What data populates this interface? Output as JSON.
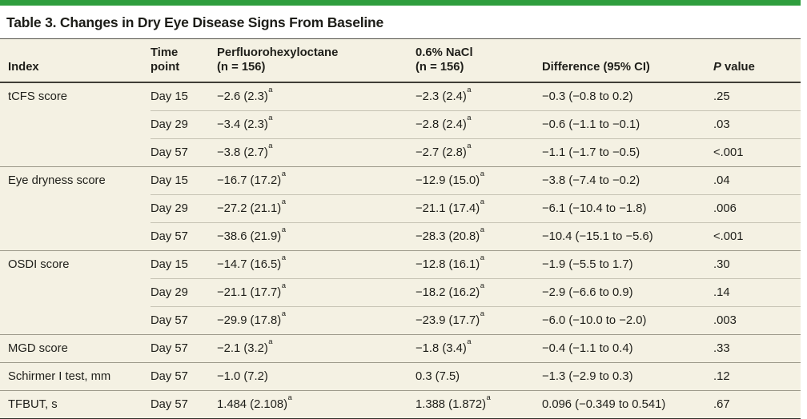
{
  "title": "Table 3. Changes in Dry Eye Disease Signs From Baseline",
  "colors": {
    "accent_green": "#2f9e3e",
    "table_background": "#f4f1e3",
    "text": "#1f1f1a"
  },
  "table": {
    "header": {
      "index": "Index",
      "time_point": "Time\npoint",
      "drug": "Perfluorohexyloctane\n(n = 156)",
      "nacl": "0.6% NaCl\n(n = 156)",
      "difference": "Difference (95% CI)",
      "p_italic": "P",
      "p_rest": " value"
    },
    "footnote_marker": "a",
    "groups": [
      {
        "index": "tCFS score",
        "rows": [
          {
            "time": "Day 15",
            "drug": "−2.6 (2.3)",
            "drug_sup": "a",
            "nacl": "−2.3 (2.4)",
            "nacl_sup": "a",
            "diff": "−0.3 (−0.8 to 0.2)",
            "p": ".25"
          },
          {
            "time": "Day 29",
            "drug": "−3.4 (2.3)",
            "drug_sup": "a",
            "nacl": "−2.8 (2.4)",
            "nacl_sup": "a",
            "diff": "−0.6 (−1.1 to −0.1)",
            "p": ".03"
          },
          {
            "time": "Day 57",
            "drug": "−3.8 (2.7)",
            "drug_sup": "a",
            "nacl": "−2.7 (2.8)",
            "nacl_sup": "a",
            "diff": "−1.1 (−1.7 to −0.5)",
            "p": "<.001"
          }
        ]
      },
      {
        "index": "Eye dryness score",
        "rows": [
          {
            "time": "Day 15",
            "drug": "−16.7 (17.2)",
            "drug_sup": "a",
            "nacl": "−12.9 (15.0)",
            "nacl_sup": "a",
            "diff": "−3.8 (−7.4 to −0.2)",
            "p": ".04"
          },
          {
            "time": "Day 29",
            "drug": "−27.2 (21.1)",
            "drug_sup": "a",
            "nacl": "−21.1 (17.4)",
            "nacl_sup": "a",
            "diff": "−6.1 (−10.4 to −1.8)",
            "p": ".006"
          },
          {
            "time": "Day 57",
            "drug": "−38.6 (21.9)",
            "drug_sup": "a",
            "nacl": "−28.3 (20.8)",
            "nacl_sup": "a",
            "diff": "−10.4 (−15.1 to −5.6)",
            "p": "<.001"
          }
        ]
      },
      {
        "index": "OSDI score",
        "rows": [
          {
            "time": "Day 15",
            "drug": "−14.7 (16.5)",
            "drug_sup": "a",
            "nacl": "−12.8 (16.1)",
            "nacl_sup": "a",
            "diff": "−1.9 (−5.5 to 1.7)",
            "p": ".30"
          },
          {
            "time": "Day 29",
            "drug": "−21.1 (17.7)",
            "drug_sup": "a",
            "nacl": "−18.2 (16.2)",
            "nacl_sup": "a",
            "diff": "−2.9 (−6.6 to 0.9)",
            "p": ".14"
          },
          {
            "time": "Day 57",
            "drug": "−29.9 (17.8)",
            "drug_sup": "a",
            "nacl": "−23.9 (17.7)",
            "nacl_sup": "a",
            "diff": "−6.0 (−10.0 to −2.0)",
            "p": ".003"
          }
        ]
      },
      {
        "index": "MGD score",
        "rows": [
          {
            "time": "Day 57",
            "drug": "−2.1 (3.2)",
            "drug_sup": "a",
            "nacl": "−1.8 (3.4)",
            "nacl_sup": "a",
            "diff": "−0.4 (−1.1 to 0.4)",
            "p": ".33"
          }
        ]
      },
      {
        "index": "Schirmer I test, mm",
        "rows": [
          {
            "time": "Day 57",
            "drug": "−1.0 (7.2)",
            "nacl": "0.3 (7.5)",
            "diff": "−1.3 (−2.9 to 0.3)",
            "p": ".12"
          }
        ]
      },
      {
        "index": "TFBUT, s",
        "rows": [
          {
            "time": "Day 57",
            "drug": "1.484 (2.108)",
            "drug_sup": "a",
            "nacl": "1.388 (1.872)",
            "nacl_sup": "a",
            "diff": "0.096 (−0.349 to 0.541)",
            "p": ".67"
          }
        ]
      }
    ]
  }
}
